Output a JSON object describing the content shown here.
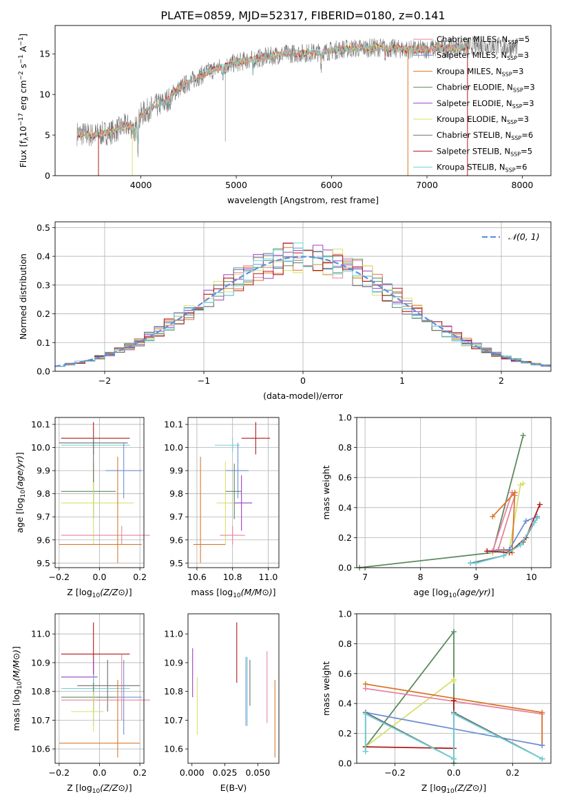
{
  "title": "PLATE=0859, MJD=52317, FIBERID=0180, z=0.141",
  "colors": {
    "chabrier_miles": "#e8829c",
    "salpeter_miles": "#6b8fd6",
    "kroupa_miles": "#d9772b",
    "chabrier_elodie": "#5b8a5e",
    "salpeter_elodie": "#9a3fbf",
    "kroupa_elodie": "#d8df6a",
    "chabrier_stelib": "#6e6e6e",
    "salpeter_stelib": "#b01818",
    "kroupa_stelib": "#6fcfd6",
    "normal": "#5b8fdf",
    "grid": "#b0b0b0"
  },
  "chart_data": [
    {
      "id": "spectrum",
      "type": "line",
      "xlabel": "wavelength [Angstrom, rest frame]",
      "ylabel": "Flux [f_λ 10^-17 erg cm^-2 s^-1 A^-1]",
      "xlim": [
        3100,
        8300
      ],
      "ylim": [
        0,
        18.5
      ],
      "xticks": [
        "4000",
        "5000",
        "6000",
        "7000",
        "8000"
      ],
      "yticks": [
        "0",
        "5",
        "10",
        "15"
      ],
      "grid": false,
      "legend_position": "top-right",
      "legend": [
        {
          "base": "Chabrier MILES, N",
          "sub": "SSP",
          "tail": "=5",
          "key": "chabrier_miles"
        },
        {
          "base": "Salpeter MILES, N",
          "sub": "SSP",
          "tail": "=3",
          "key": "salpeter_miles"
        },
        {
          "base": "Kroupa MILES, N",
          "sub": "SSP",
          "tail": "=3",
          "key": "kroupa_miles"
        },
        {
          "base": "Chabrier ELODIE, N",
          "sub": "SSP",
          "tail": "=3",
          "key": "chabrier_elodie"
        },
        {
          "base": "Salpeter ELODIE, N",
          "sub": "SSP",
          "tail": "=3",
          "key": "salpeter_elodie"
        },
        {
          "base": "Kroupa ELODIE, N",
          "sub": "SSP",
          "tail": "=3",
          "key": "kroupa_elodie"
        },
        {
          "base": "Chabrier STELIB, N",
          "sub": "SSP",
          "tail": "=6",
          "key": "chabrier_stelib"
        },
        {
          "base": "Salpeter STELIB, N",
          "sub": "SSP",
          "tail": "=5",
          "key": "salpeter_stelib"
        },
        {
          "base": "Kroupa STELIB, N",
          "sub": "SSP",
          "tail": "=6",
          "key": "kroupa_stelib"
        }
      ],
      "continuum": [
        [
          3330,
          5.2
        ],
        [
          3500,
          5.0
        ],
        [
          3700,
          5.4
        ],
        [
          3850,
          6.2
        ],
        [
          3950,
          5.8
        ],
        [
          4000,
          7.5
        ],
        [
          4100,
          8.3
        ],
        [
          4250,
          9.0
        ],
        [
          4350,
          10.3
        ],
        [
          4500,
          11.5
        ],
        [
          4700,
          12.8
        ],
        [
          4900,
          13.6
        ],
        [
          5100,
          14.2
        ],
        [
          5300,
          14.6
        ],
        [
          5500,
          15.0
        ],
        [
          5700,
          15.1
        ],
        [
          5900,
          15.2
        ],
        [
          6100,
          15.6
        ],
        [
          6300,
          15.7
        ],
        [
          6500,
          15.8
        ],
        [
          6700,
          15.6
        ],
        [
          6900,
          15.5
        ],
        [
          7100,
          15.7
        ],
        [
          7300,
          15.8
        ],
        [
          7500,
          16.0
        ],
        [
          7700,
          16.0
        ],
        [
          7900,
          15.8
        ]
      ],
      "absorption": [
        [
          3934,
          4.0
        ],
        [
          3969,
          3.5
        ],
        [
          4101,
          6.5
        ],
        [
          4304,
          8.0
        ],
        [
          4861,
          11.5
        ],
        [
          5175,
          12.2
        ],
        [
          5890,
          13.4
        ],
        [
          6563,
          14.2
        ]
      ],
      "noise_amplitude": 1.2,
      "model_range": [
        3330,
        7440
      ]
    },
    {
      "id": "residuals",
      "type": "histogram",
      "xlabel": "(data-model)/error",
      "ylabel": "Normed distribution",
      "xlim": [
        -2.5,
        2.5
      ],
      "ylim": [
        0,
        0.52
      ],
      "xticks": [
        "−2",
        "−1",
        "0",
        "1",
        "2"
      ],
      "yticks": [
        "0.0",
        "0.1",
        "0.2",
        "0.3",
        "0.4",
        "0.5"
      ],
      "grid": true,
      "bin_width": 0.1,
      "legend_position": "top-right",
      "legend_label": "𝒩(0, 1)"
    },
    {
      "id": "age_vs_Z",
      "type": "errorbar",
      "xlabel": "Z [log10(Z/Z⊙)]",
      "ylabel": "age [log10(age/yr)]",
      "xlim": [
        -0.22,
        0.22
      ],
      "ylim": [
        9.48,
        10.13
      ],
      "xticks": [
        "−0.2",
        "0.0",
        "0.2"
      ],
      "yticks": [
        "9.5",
        "9.6",
        "9.7",
        "9.8",
        "9.9",
        "10.0",
        "10.1"
      ],
      "grid": true,
      "points": [
        {
          "key": "salpeter_stelib",
          "x": -0.03,
          "xerr": [
            0.16,
            0.18
          ],
          "y": 10.04,
          "yerr": [
            0.07,
            0.07
          ]
        },
        {
          "key": "kroupa_stelib",
          "x": -0.03,
          "xerr": [
            0.16,
            0.18
          ],
          "y": 10.01,
          "yerr": [
            0.03,
            0.03
          ]
        },
        {
          "key": "salpeter_miles",
          "x": 0.12,
          "xerr": [
            0.09,
            0.09
          ],
          "y": 9.9,
          "yerr": [
            0.12,
            0.12
          ]
        },
        {
          "key": "chabrier_elodie",
          "x": -0.03,
          "xerr": [
            0.16,
            0.11
          ],
          "y": 9.81,
          "yerr": [
            0.12,
            0.12
          ]
        },
        {
          "key": "kroupa_elodie",
          "x": -0.03,
          "xerr": [
            0.16,
            0.2
          ],
          "y": 9.76,
          "yerr": [
            0.18,
            0.18
          ]
        },
        {
          "key": "chabrier_miles",
          "x": 0.11,
          "xerr": [
            0.3,
            0.14
          ],
          "y": 9.62,
          "yerr": [
            0.04,
            0.04
          ]
        },
        {
          "key": "kroupa_miles",
          "x": 0.09,
          "xerr": [
            0.29,
            0.12
          ],
          "y": 9.58,
          "yerr": [
            0.08,
            0.38
          ]
        },
        {
          "key": "chabrier_stelib",
          "x": -0.03,
          "xerr": [
            0.17,
            0.17
          ],
          "y": 10.02,
          "yerr": [
            0.17,
            0.03
          ]
        }
      ]
    },
    {
      "id": "age_vs_mass",
      "type": "errorbar",
      "xlabel": "mass [log10(M/M⊙)]",
      "ylabel": "",
      "xlim": [
        10.55,
        11.06
      ],
      "ylim": [
        9.48,
        10.13
      ],
      "xticks": [
        "10.6",
        "10.8",
        "11.0"
      ],
      "yticks": [
        "9.5",
        "9.6",
        "9.7",
        "9.8",
        "9.9",
        "10.0",
        "10.1"
      ],
      "grid": true,
      "points": [
        {
          "key": "salpeter_stelib",
          "x": 10.93,
          "xerr": [
            0.08,
            0.08
          ],
          "y": 10.04,
          "yerr": [
            0.07,
            0.07
          ]
        },
        {
          "key": "kroupa_stelib",
          "x": 10.8,
          "xerr": [
            0.1,
            0.04
          ],
          "y": 10.01,
          "yerr": [
            0.03,
            0.03
          ]
        },
        {
          "key": "salpeter_miles",
          "x": 10.83,
          "xerr": [
            0.07,
            0.06
          ],
          "y": 9.9,
          "yerr": [
            0.12,
            0.12
          ]
        },
        {
          "key": "chabrier_elodie",
          "x": 10.81,
          "xerr": [
            0.05,
            0.04
          ],
          "y": 9.81,
          "yerr": [
            0.12,
            0.12
          ]
        },
        {
          "key": "salpeter_elodie",
          "x": 10.85,
          "xerr": [
            0.06,
            0.06
          ],
          "y": 9.76,
          "yerr": [
            0.12,
            0.12
          ]
        },
        {
          "key": "kroupa_elodie",
          "x": 10.76,
          "xerr": [
            0.05,
            0.05
          ],
          "y": 9.76,
          "yerr": [
            0.18,
            0.18
          ]
        },
        {
          "key": "chabrier_miles",
          "x": 10.8,
          "xerr": [
            0.07,
            0.07
          ],
          "y": 9.62,
          "yerr": [
            0.04,
            0.04
          ]
        },
        {
          "key": "kroupa_miles",
          "x": 10.62,
          "xerr": [
            0.04,
            0.14
          ],
          "y": 9.58,
          "yerr": [
            0.08,
            0.38
          ]
        }
      ]
    },
    {
      "id": "weight_vs_age",
      "type": "line",
      "xlabel": "age [log10(age/yr)]",
      "ylabel": "mass weight",
      "xlim": [
        6.85,
        10.35
      ],
      "ylim": [
        0,
        1.0
      ],
      "xticks": [
        "7",
        "8",
        "9",
        "10"
      ],
      "yticks": [
        "0.0",
        "0.2",
        "0.4",
        "0.6",
        "0.8",
        "1.0"
      ],
      "grid": true,
      "series": [
        {
          "key": "chabrier_elodie",
          "x": [
            6.9,
            9.3,
            9.85
          ],
          "y": [
            0.0,
            0.1,
            0.88
          ]
        },
        {
          "key": "kroupa_elodie",
          "x": [
            9.3,
            9.6,
            9.8,
            9.85
          ],
          "y": [
            0.1,
            0.12,
            0.55,
            0.56
          ]
        },
        {
          "key": "chabrier_miles",
          "x": [
            9.3,
            9.65,
            9.7,
            9.4,
            9.3
          ],
          "y": [
            0.11,
            0.5,
            0.48,
            0.12,
            0.11
          ]
        },
        {
          "key": "kroupa_miles",
          "x": [
            9.3,
            9.7,
            9.65,
            9.5
          ],
          "y": [
            0.34,
            0.5,
            0.1,
            0.12
          ]
        },
        {
          "key": "salpeter_miles",
          "x": [
            9.2,
            9.6,
            9.9,
            10.1
          ],
          "y": [
            0.11,
            0.12,
            0.31,
            0.34
          ]
        },
        {
          "key": "salpeter_stelib",
          "x": [
            9.2,
            9.6,
            9.9,
            10.15
          ],
          "y": [
            0.11,
            0.1,
            0.2,
            0.42
          ]
        },
        {
          "key": "chabrier_stelib",
          "x": [
            8.9,
            9.5,
            9.85,
            10.1
          ],
          "y": [
            0.03,
            0.08,
            0.17,
            0.33
          ]
        },
        {
          "key": "kroupa_stelib",
          "x": [
            8.9,
            9.0,
            9.5,
            9.8,
            10.05,
            10.1
          ],
          "y": [
            0.03,
            0.03,
            0.08,
            0.15,
            0.3,
            0.33
          ]
        }
      ]
    },
    {
      "id": "mass_vs_Z",
      "type": "errorbar",
      "xlabel": "Z [log10(Z/Z⊙)]",
      "ylabel": "mass [log10(M/M⊙)]",
      "xlim": [
        -0.22,
        0.22
      ],
      "ylim": [
        10.55,
        11.07
      ],
      "xticks": [
        "−0.2",
        "0.0",
        "0.2"
      ],
      "yticks": [
        "10.6",
        "10.7",
        "10.8",
        "10.9",
        "11.0"
      ],
      "grid": true,
      "points": [
        {
          "key": "salpeter_stelib",
          "x": -0.03,
          "xerr": [
            0.16,
            0.18
          ],
          "y": 10.93,
          "yerr": [
            0.08,
            0.11
          ]
        },
        {
          "key": "salpeter_elodie",
          "x": -0.03,
          "xerr": [
            0.16,
            0.02
          ],
          "y": 10.85,
          "yerr": [
            0.06,
            0.06
          ]
        },
        {
          "key": "chabrier_stelib",
          "x": 0.04,
          "xerr": [
            0.15,
            0.16
          ],
          "y": 10.82,
          "yerr": [
            0.09,
            0.09
          ]
        },
        {
          "key": "kroupa_stelib",
          "x": -0.03,
          "xerr": [
            0.16,
            0.18
          ],
          "y": 10.81,
          "yerr": [
            0.13,
            0.05
          ]
        },
        {
          "key": "salpeter_miles",
          "x": 0.12,
          "xerr": [
            0.14,
            0.09
          ],
          "y": 10.78,
          "yerr": [
            0.13,
            0.13
          ]
        },
        {
          "key": "chabrier_elodie",
          "x": -0.03,
          "xerr": [
            0.16,
            0.11
          ],
          "y": 10.78,
          "yerr": [
            0.05,
            0.05
          ]
        },
        {
          "key": "chabrier_miles",
          "x": 0.11,
          "xerr": [
            0.3,
            0.14
          ],
          "y": 10.77,
          "yerr": [
            0.07,
            0.16
          ]
        },
        {
          "key": "kroupa_elodie",
          "x": -0.03,
          "xerr": [
            0.11,
            0.05
          ],
          "y": 10.73,
          "yerr": [
            0.07,
            0.07
          ]
        },
        {
          "key": "kroupa_miles",
          "x": 0.09,
          "xerr": [
            0.29,
            0.11
          ],
          "y": 10.62,
          "yerr": [
            0.05,
            0.22
          ]
        }
      ]
    },
    {
      "id": "mass_vs_ebv",
      "type": "errorbar",
      "xlabel": "E(B-V)",
      "ylabel": "",
      "xlim": [
        -0.003,
        0.066
      ],
      "ylim": [
        10.55,
        11.07
      ],
      "xticks": [
        "0.000",
        "0.025",
        "0.050"
      ],
      "yticks": [
        "10.6",
        "10.7",
        "10.8",
        "10.9",
        "11.0"
      ],
      "grid": false,
      "points": [
        {
          "key": "salpeter_elodie",
          "x": 0.0005,
          "y": 10.85,
          "yerr": [
            0.07,
            0.1
          ]
        },
        {
          "key": "kroupa_elodie",
          "x": 0.004,
          "y": 10.75,
          "yerr": [
            0.1,
            0.1
          ]
        },
        {
          "key": "salpeter_stelib",
          "x": 0.034,
          "y": 10.93,
          "yerr": [
            0.1,
            0.11
          ]
        },
        {
          "key": "salpeter_miles",
          "x": 0.041,
          "y": 10.8,
          "yerr": [
            0.12,
            0.12
          ]
        },
        {
          "key": "kroupa_stelib",
          "x": 0.042,
          "y": 10.8,
          "yerr": [
            0.12,
            0.12
          ]
        },
        {
          "key": "chabrier_stelib",
          "x": 0.044,
          "y": 10.82,
          "yerr": [
            0.07,
            0.09
          ]
        },
        {
          "key": "chabrier_miles",
          "x": 0.057,
          "y": 10.8,
          "yerr": [
            0.11,
            0.14
          ]
        },
        {
          "key": "kroupa_miles",
          "x": 0.063,
          "y": 10.7,
          "yerr": [
            0.13,
            0.14
          ]
        }
      ]
    },
    {
      "id": "weight_vs_Z",
      "type": "line",
      "xlabel": "Z [log10(Z/Z⊙)]",
      "ylabel": "mass weight",
      "xlim": [
        -0.33,
        0.33
      ],
      "ylim": [
        0,
        1.0
      ],
      "xticks": [
        "−0.2",
        "0.0",
        "0.2"
      ],
      "yticks": [
        "0.0",
        "0.2",
        "0.4",
        "0.6",
        "0.8",
        "1.0"
      ],
      "grid": true,
      "series": [
        {
          "key": "chabrier_elodie",
          "x": [
            -0.3,
            0.0,
            0.0
          ],
          "y": [
            0.11,
            0.88,
            0.0
          ]
        },
        {
          "key": "kroupa_elodie",
          "x": [
            -0.3,
            0.0,
            0.0
          ],
          "y": [
            0.11,
            0.56,
            0.55
          ]
        },
        {
          "key": "chabrier_miles",
          "x": [
            -0.3,
            0.3,
            0.3
          ],
          "y": [
            0.5,
            0.33,
            0.12
          ]
        },
        {
          "key": "kroupa_miles",
          "x": [
            -0.3,
            0.3,
            0.3
          ],
          "y": [
            0.53,
            0.34,
            0.12
          ]
        },
        {
          "key": "salpeter_miles",
          "x": [
            -0.3,
            0.3
          ],
          "y": [
            0.34,
            0.12
          ]
        },
        {
          "key": "salpeter_stelib",
          "x": [
            -0.3,
            0.0,
            0.0
          ],
          "y": [
            0.11,
            0.1,
            0.42
          ]
        },
        {
          "key": "chabrier_stelib",
          "x": [
            -0.3,
            -0.3,
            0.0,
            0.0,
            0.3
          ],
          "y": [
            0.08,
            0.34,
            0.03,
            0.34,
            0.03
          ]
        },
        {
          "key": "kroupa_stelib",
          "x": [
            -0.3,
            -0.3,
            0.0,
            0.0,
            0.3
          ],
          "y": [
            0.08,
            0.33,
            0.03,
            0.33,
            0.03
          ]
        }
      ]
    }
  ]
}
